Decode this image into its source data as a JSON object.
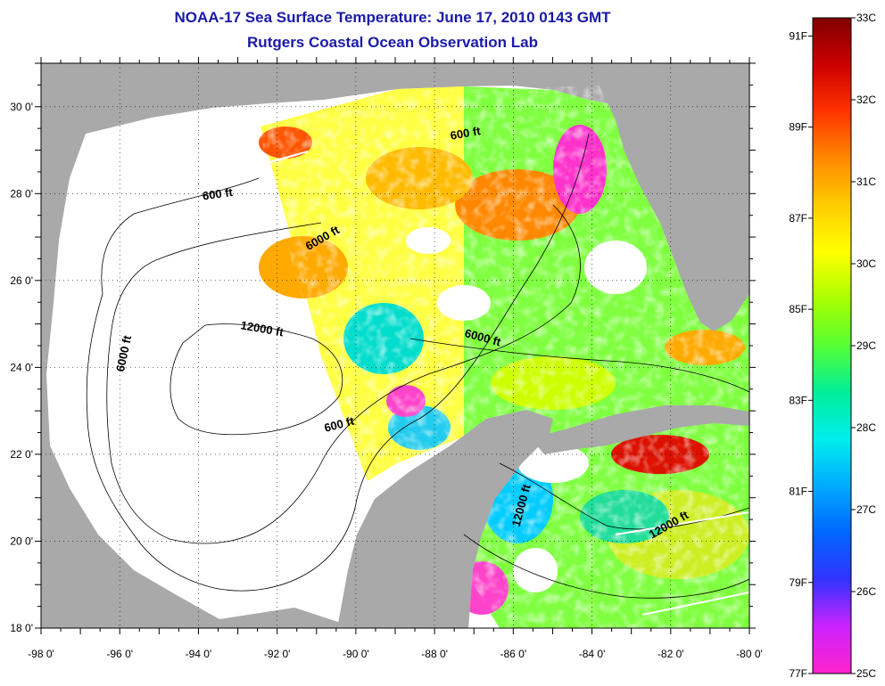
{
  "header": {
    "title": "NOAA-17 Sea Surface Temperature:  June 17, 2010 0143 GMT",
    "subtitle": "Rutgers Coastal Ocean Observation Lab"
  },
  "map": {
    "lon_range": [
      -98,
      -80
    ],
    "lat_range": [
      18,
      31
    ],
    "lon_labels": [
      "-98 0'",
      "-96 0'",
      "-94 0'",
      "-92 0'",
      "-90 0'",
      "-88 0'",
      "-86 0'",
      "-84 0'",
      "-82 0'",
      "-80 0'"
    ],
    "lat_labels": [
      "18 0'",
      "20 0'",
      "22 0'",
      "24 0'",
      "26 0'",
      "28 0'",
      "30 0'"
    ],
    "grid": "dotted",
    "colors": {
      "land": "#a9a9a9",
      "no_data": "#ffffff",
      "contour": "#000000"
    },
    "contour_labels": [
      {
        "text": "600 ft",
        "lon": -93.5,
        "lat": 27.9
      },
      {
        "text": "600 ft",
        "lon": -87.2,
        "lat": 29.3
      },
      {
        "text": "600 ft",
        "lon": -90.4,
        "lat": 22.6
      },
      {
        "text": "6000 ft",
        "lon": -95.8,
        "lat": 24.3
      },
      {
        "text": "6000 ft",
        "lon": -90.8,
        "lat": 26.9
      },
      {
        "text": "6000 ft",
        "lon": -86.8,
        "lat": 24.6
      },
      {
        "text": "12000 ft",
        "lon": -92.4,
        "lat": 24.8
      },
      {
        "text": "12000 ft",
        "lon": -85.7,
        "lat": 20.8
      },
      {
        "text": "12000 ft",
        "lon": -82.0,
        "lat": 20.3
      }
    ]
  },
  "colorbar": {
    "celsius_labels": [
      "33C",
      "32C",
      "31C",
      "30C",
      "29C",
      "28C",
      "27C",
      "26C",
      "25C"
    ],
    "fahrenheit_labels": [
      "91F",
      "89F",
      "87F",
      "85F",
      "83F",
      "81F",
      "79F",
      "77F"
    ],
    "range_c": [
      25,
      33
    ],
    "colors": [
      "#ff22cc",
      "#cc22ff",
      "#3333ff",
      "#0066ff",
      "#00aaff",
      "#00eeee",
      "#00ee99",
      "#55ff33",
      "#aaff00",
      "#ffff00",
      "#ffcc00",
      "#ff8800",
      "#ff3300",
      "#cc0000",
      "#800000"
    ]
  }
}
